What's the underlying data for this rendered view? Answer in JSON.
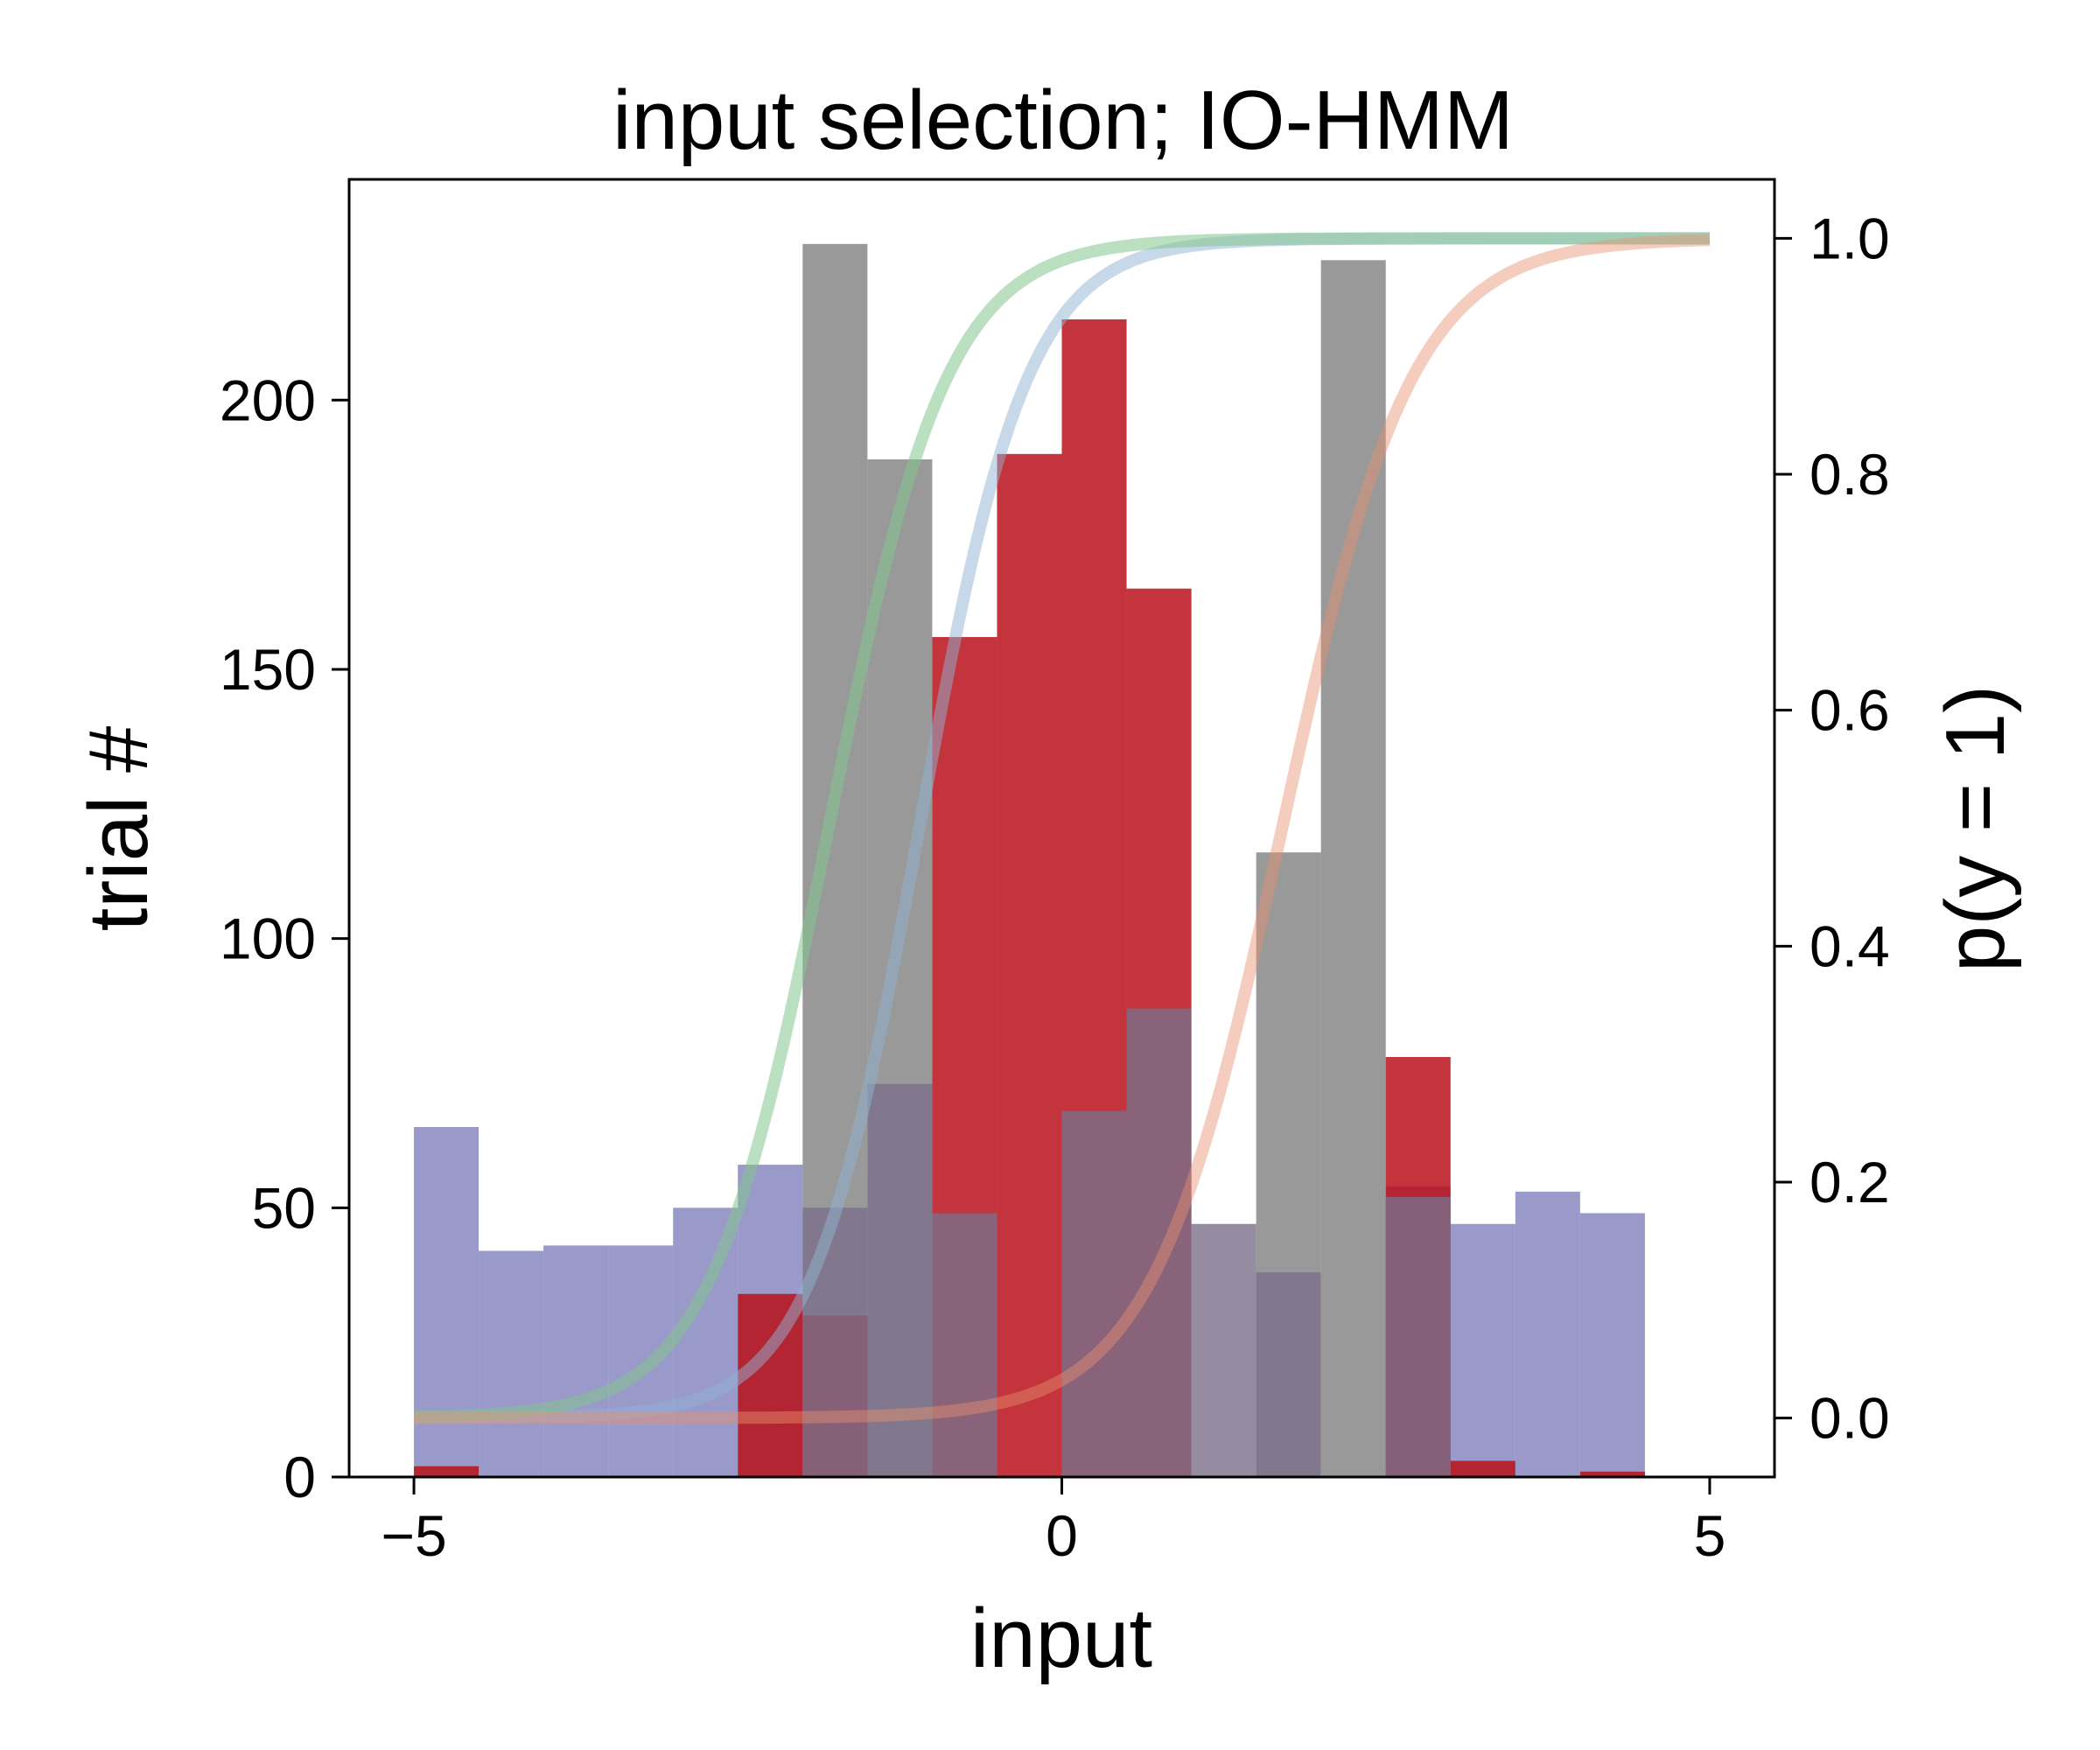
{
  "chart_data": {
    "type": "bar",
    "title": "input selection; IO-HMM",
    "xlabel": "input",
    "ylabel": "trial #",
    "ylabel_right": "p(y = 1)",
    "xlim": [
      -5.5,
      5.5
    ],
    "ylim": [
      0,
      241
    ],
    "ylim_right": [
      -0.05,
      1.05
    ],
    "x_ticks": [
      -5,
      0,
      5
    ],
    "x_tick_labels": [
      "−5",
      "0",
      "5"
    ],
    "y_ticks": [
      0,
      50,
      100,
      150,
      200
    ],
    "y_tick_labels": [
      "0",
      "50",
      "100",
      "150",
      "200"
    ],
    "y_right_ticks": [
      0.0,
      0.2,
      0.4,
      0.6,
      0.8,
      1.0
    ],
    "y_right_tick_labels": [
      "0.0",
      "0.2",
      "0.4",
      "0.6",
      "0.8",
      "1.0"
    ],
    "bin_edges": [
      -5,
      -4.5,
      -4,
      -3.5,
      -3,
      -2.5,
      -2,
      -1.5,
      -1,
      -0.5,
      0,
      0.5,
      1,
      1.5,
      2,
      2.5,
      3,
      3.5,
      4,
      4.5
    ],
    "histograms": [
      {
        "color": "#7f7fbd",
        "opacity": 0.8,
        "values": [
          65,
          42,
          43,
          43,
          50,
          58,
          0,
          0,
          0,
          0,
          0,
          0,
          0,
          0,
          0,
          54,
          47,
          53,
          49
        ]
      },
      {
        "color": "#808080",
        "opacity": 0.8,
        "values": [
          0,
          0,
          0,
          0,
          0,
          0,
          229,
          189,
          0,
          0,
          0,
          0,
          0,
          116,
          226,
          0,
          0,
          0,
          0
        ]
      },
      {
        "color": "#b8101a",
        "opacity": 0.85,
        "values": [
          2,
          0,
          0,
          0,
          0,
          34,
          30,
          0,
          156,
          190,
          215,
          165,
          0,
          0,
          0,
          78,
          3,
          0,
          1
        ]
      },
      {
        "color": "#7a6f8a",
        "opacity": 0.8,
        "values": [
          0,
          0,
          0,
          0,
          0,
          0,
          50,
          73,
          49,
          0,
          68,
          87,
          47,
          38,
          0,
          52,
          0,
          0,
          0
        ]
      }
    ],
    "curves": [
      {
        "color": "#8fb3d4",
        "opacity": 0.5,
        "slope": 2.4,
        "midpoint": -1.1
      },
      {
        "color": "#83c58e",
        "opacity": 0.55,
        "slope": 2.2,
        "midpoint": -1.8
      },
      {
        "color": "#e9906f",
        "opacity": 0.45,
        "slope": 2.0,
        "midpoint": 1.7
      }
    ]
  }
}
